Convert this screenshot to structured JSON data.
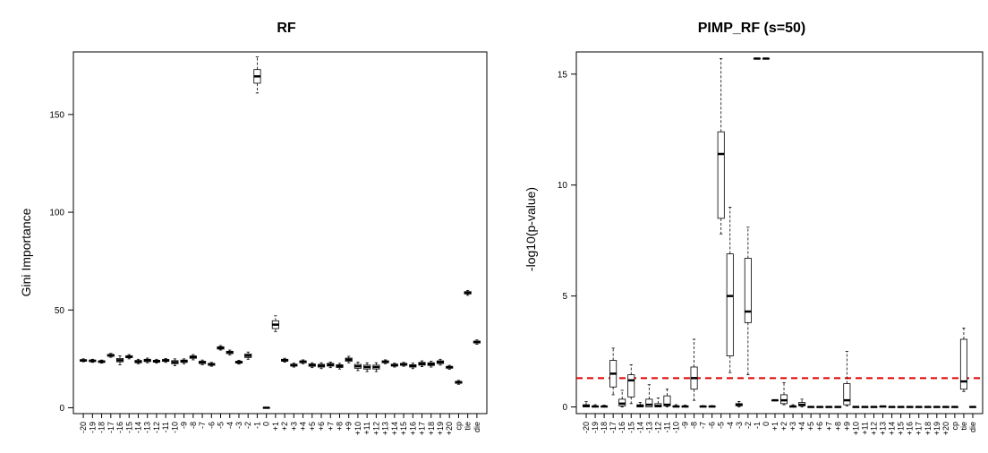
{
  "chart_data": [
    {
      "type": "boxplot",
      "title": "RF",
      "xlabel": "",
      "ylabel": "Gini Importance",
      "ylim": [
        -3,
        182
      ],
      "yticks": [
        0,
        50,
        100,
        150
      ],
      "categories": [
        "-20",
        "-19",
        "-18",
        "-17",
        "-16",
        "-15",
        "-14",
        "-13",
        "-12",
        "-11",
        "-10",
        "-9",
        "-8",
        "-7",
        "-6",
        "-5",
        "-4",
        "-3",
        "-2",
        "-1",
        "0",
        "+1",
        "+2",
        "+3",
        "+4",
        "+5",
        "+6",
        "+7",
        "+8",
        "+9",
        "+10",
        "+11",
        "+12",
        "+13",
        "+14",
        "+15",
        "+16",
        "+17",
        "+18",
        "+19",
        "+20",
        "cp",
        "tie",
        "die"
      ],
      "boxes": [
        {
          "min": 23.5,
          "q1": 23.8,
          "median": 24.2,
          "q3": 24.6,
          "max": 25.0
        },
        {
          "min": 23.2,
          "q1": 23.6,
          "median": 24.0,
          "q3": 24.4,
          "max": 24.8
        },
        {
          "min": 22.8,
          "q1": 23.2,
          "median": 23.6,
          "q3": 24.0,
          "max": 24.4
        },
        {
          "min": 25.8,
          "q1": 26.3,
          "median": 26.8,
          "q3": 27.3,
          "max": 27.8
        },
        {
          "min": 22.0,
          "q1": 23.5,
          "median": 24.3,
          "q3": 25.2,
          "max": 26.5
        },
        {
          "min": 25.0,
          "q1": 25.6,
          "median": 26.1,
          "q3": 26.6,
          "max": 27.2
        },
        {
          "min": 22.5,
          "q1": 23.0,
          "median": 23.6,
          "q3": 24.2,
          "max": 24.8
        },
        {
          "min": 23.0,
          "q1": 23.6,
          "median": 24.2,
          "q3": 24.8,
          "max": 25.4
        },
        {
          "min": 22.8,
          "q1": 23.3,
          "median": 23.8,
          "q3": 24.3,
          "max": 24.8
        },
        {
          "min": 23.2,
          "q1": 23.7,
          "median": 24.2,
          "q3": 24.7,
          "max": 25.2
        },
        {
          "min": 21.5,
          "q1": 22.5,
          "median": 23.3,
          "q3": 24.1,
          "max": 25.0
        },
        {
          "min": 22.5,
          "q1": 23.2,
          "median": 23.8,
          "q3": 24.4,
          "max": 25.0
        },
        {
          "min": 24.5,
          "q1": 25.3,
          "median": 25.9,
          "q3": 26.5,
          "max": 27.2
        },
        {
          "min": 22.0,
          "q1": 22.6,
          "median": 23.2,
          "q3": 23.8,
          "max": 24.4
        },
        {
          "min": 21.2,
          "q1": 21.7,
          "median": 22.2,
          "q3": 22.7,
          "max": 23.2
        },
        {
          "min": 29.5,
          "q1": 30.0,
          "median": 30.6,
          "q3": 31.2,
          "max": 31.8
        },
        {
          "min": 27.0,
          "q1": 27.7,
          "median": 28.3,
          "q3": 28.9,
          "max": 29.5
        },
        {
          "min": 22.3,
          "q1": 22.8,
          "median": 23.3,
          "q3": 23.8,
          "max": 24.3
        },
        {
          "min": 24.8,
          "q1": 25.7,
          "median": 26.6,
          "q3": 27.5,
          "max": 28.5
        },
        {
          "min": 161.0,
          "q1": 166.0,
          "median": 169.5,
          "q3": 173.0,
          "max": 179.5
        },
        {
          "min": 0.0,
          "q1": 0.0,
          "median": 0.0,
          "q3": 0.0,
          "max": 0.0
        },
        {
          "min": 39.0,
          "q1": 40.5,
          "median": 42.5,
          "q3": 44.5,
          "max": 47.0
        },
        {
          "min": 23.3,
          "q1": 23.8,
          "median": 24.3,
          "q3": 24.8,
          "max": 25.3
        },
        {
          "min": 20.8,
          "q1": 21.3,
          "median": 21.8,
          "q3": 22.3,
          "max": 22.8
        },
        {
          "min": 22.5,
          "q1": 23.0,
          "median": 23.5,
          "q3": 24.0,
          "max": 24.5
        },
        {
          "min": 20.5,
          "q1": 21.2,
          "median": 21.8,
          "q3": 22.4,
          "max": 23.0
        },
        {
          "min": 20.0,
          "q1": 20.8,
          "median": 21.5,
          "q3": 22.2,
          "max": 23.0
        },
        {
          "min": 20.5,
          "q1": 21.3,
          "median": 22.0,
          "q3": 22.7,
          "max": 23.4
        },
        {
          "min": 19.8,
          "q1": 20.6,
          "median": 21.3,
          "q3": 22.0,
          "max": 22.7
        },
        {
          "min": 23.0,
          "q1": 23.8,
          "median": 24.6,
          "q3": 25.4,
          "max": 26.3
        },
        {
          "min": 19.0,
          "q1": 20.2,
          "median": 21.2,
          "q3": 22.2,
          "max": 23.3
        },
        {
          "min": 18.5,
          "q1": 19.8,
          "median": 20.8,
          "q3": 21.8,
          "max": 23.0
        },
        {
          "min": 18.5,
          "q1": 19.8,
          "median": 20.8,
          "q3": 21.8,
          "max": 23.0
        },
        {
          "min": 22.5,
          "q1": 23.0,
          "median": 23.5,
          "q3": 24.0,
          "max": 24.5
        },
        {
          "min": 20.8,
          "q1": 21.3,
          "median": 21.8,
          "q3": 22.3,
          "max": 22.8
        },
        {
          "min": 21.2,
          "q1": 21.7,
          "median": 22.2,
          "q3": 22.7,
          "max": 23.2
        },
        {
          "min": 20.0,
          "q1": 20.8,
          "median": 21.4,
          "q3": 22.0,
          "max": 22.8
        },
        {
          "min": 21.0,
          "q1": 21.8,
          "median": 22.5,
          "q3": 23.2,
          "max": 24.0
        },
        {
          "min": 20.8,
          "q1": 21.6,
          "median": 22.3,
          "q3": 23.0,
          "max": 23.8
        },
        {
          "min": 21.8,
          "q1": 22.6,
          "median": 23.3,
          "q3": 24.0,
          "max": 24.8
        },
        {
          "min": 19.7,
          "q1": 20.2,
          "median": 20.7,
          "q3": 21.2,
          "max": 21.7
        },
        {
          "min": 12.0,
          "q1": 12.5,
          "median": 13.0,
          "q3": 13.5,
          "max": 14.0
        },
        {
          "min": 57.5,
          "q1": 58.2,
          "median": 58.8,
          "q3": 59.4,
          "max": 60.0
        },
        {
          "min": 32.5,
          "q1": 33.1,
          "median": 33.6,
          "q3": 34.1,
          "max": 34.7
        }
      ]
    },
    {
      "type": "boxplot",
      "title": "PIMP_RF (s=50)",
      "xlabel": "",
      "ylabel": "-log10(p-value)",
      "ylim": [
        -0.3,
        16.0
      ],
      "yticks": [
        0,
        5,
        10,
        15
      ],
      "threshold": {
        "value": 1.3,
        "color": "#e00000",
        "style": "dashed"
      },
      "categories": [
        "-20",
        "-19",
        "-18",
        "-17",
        "-16",
        "-15",
        "-14",
        "-13",
        "-12",
        "-11",
        "-10",
        "-9",
        "-8",
        "-7",
        "-6",
        "-5",
        "-4",
        "-3",
        "-2",
        "-1",
        "0",
        "+1",
        "+2",
        "+3",
        "+4",
        "+5",
        "+6",
        "+7",
        "+8",
        "+9",
        "+10",
        "+11",
        "+12",
        "+13",
        "+14",
        "+15",
        "+16",
        "+17",
        "+18",
        "+19",
        "+20",
        "cp",
        "tie",
        "die"
      ],
      "boxes": [
        {
          "min": 0.0,
          "q1": 0.0,
          "median": 0.05,
          "q3": 0.1,
          "max": 0.25
        },
        {
          "min": 0.0,
          "q1": 0.0,
          "median": 0.02,
          "q3": 0.05,
          "max": 0.1
        },
        {
          "min": 0.0,
          "q1": 0.0,
          "median": 0.02,
          "q3": 0.04,
          "max": 0.08
        },
        {
          "min": 0.55,
          "q1": 0.9,
          "median": 1.5,
          "q3": 2.1,
          "max": 2.65
        },
        {
          "min": 0.0,
          "q1": 0.05,
          "median": 0.15,
          "q3": 0.35,
          "max": 0.75
        },
        {
          "min": 0.15,
          "q1": 0.45,
          "median": 1.2,
          "q3": 1.45,
          "max": 1.9
        },
        {
          "min": 0.0,
          "q1": 0.0,
          "median": 0.05,
          "q3": 0.1,
          "max": 0.2
        },
        {
          "min": 0.0,
          "q1": 0.0,
          "median": 0.1,
          "q3": 0.35,
          "max": 1.0
        },
        {
          "min": 0.0,
          "q1": 0.0,
          "median": 0.05,
          "q3": 0.15,
          "max": 0.4
        },
        {
          "min": 0.0,
          "q1": 0.05,
          "median": 0.1,
          "q3": 0.5,
          "max": 0.8
        },
        {
          "min": 0.0,
          "q1": 0.0,
          "median": 0.02,
          "q3": 0.05,
          "max": 0.1
        },
        {
          "min": 0.0,
          "q1": 0.0,
          "median": 0.02,
          "q3": 0.04,
          "max": 0.08
        },
        {
          "min": 0.3,
          "q1": 0.8,
          "median": 1.3,
          "q3": 1.8,
          "max": 3.05
        },
        {
          "min": 0.0,
          "q1": 0.0,
          "median": 0.02,
          "q3": 0.04,
          "max": 0.06
        },
        {
          "min": 0.0,
          "q1": 0.0,
          "median": 0.02,
          "q3": 0.04,
          "max": 0.06
        },
        {
          "min": 7.8,
          "q1": 8.5,
          "median": 11.4,
          "q3": 12.4,
          "max": 15.7
        },
        {
          "min": 1.55,
          "q1": 2.3,
          "median": 5.0,
          "q3": 6.9,
          "max": 9.0
        },
        {
          "min": 0.0,
          "q1": 0.05,
          "median": 0.1,
          "q3": 0.15,
          "max": 0.25
        },
        {
          "min": 1.45,
          "q1": 3.8,
          "median": 4.3,
          "q3": 6.7,
          "max": 8.1
        },
        {
          "min": 15.7,
          "q1": 15.7,
          "median": 15.7,
          "q3": 15.7,
          "max": 15.7
        },
        {
          "min": 15.7,
          "q1": 15.7,
          "median": 15.7,
          "q3": 15.7,
          "max": 15.7
        },
        {
          "min": 0.3,
          "q1": 0.3,
          "median": 0.3,
          "q3": 0.3,
          "max": 0.3
        },
        {
          "min": 0.1,
          "q1": 0.15,
          "median": 0.3,
          "q3": 0.55,
          "max": 1.1
        },
        {
          "min": 0.0,
          "q1": 0.0,
          "median": 0.02,
          "q3": 0.05,
          "max": 0.1
        },
        {
          "min": 0.0,
          "q1": 0.05,
          "median": 0.1,
          "q3": 0.2,
          "max": 0.35
        },
        {
          "min": 0.0,
          "q1": 0.0,
          "median": 0.0,
          "q3": 0.0,
          "max": 0.0
        },
        {
          "min": 0.0,
          "q1": 0.0,
          "median": 0.0,
          "q3": 0.0,
          "max": 0.0
        },
        {
          "min": 0.0,
          "q1": 0.0,
          "median": 0.0,
          "q3": 0.0,
          "max": 0.0
        },
        {
          "min": 0.0,
          "q1": 0.0,
          "median": 0.0,
          "q3": 0.0,
          "max": 0.0
        },
        {
          "min": 0.05,
          "q1": 0.1,
          "median": 0.3,
          "q3": 1.05,
          "max": 2.5
        },
        {
          "min": 0.0,
          "q1": 0.0,
          "median": 0.0,
          "q3": 0.0,
          "max": 0.0
        },
        {
          "min": 0.0,
          "q1": 0.0,
          "median": 0.0,
          "q3": 0.0,
          "max": 0.0
        },
        {
          "min": 0.0,
          "q1": 0.0,
          "median": 0.0,
          "q3": 0.0,
          "max": 0.0
        },
        {
          "min": 0.0,
          "q1": 0.0,
          "median": 0.02,
          "q3": 0.03,
          "max": 0.05
        },
        {
          "min": 0.0,
          "q1": 0.0,
          "median": 0.0,
          "q3": 0.0,
          "max": 0.0
        },
        {
          "min": 0.0,
          "q1": 0.0,
          "median": 0.0,
          "q3": 0.0,
          "max": 0.0
        },
        {
          "min": 0.0,
          "q1": 0.0,
          "median": 0.0,
          "q3": 0.0,
          "max": 0.0
        },
        {
          "min": 0.0,
          "q1": 0.0,
          "median": 0.0,
          "q3": 0.0,
          "max": 0.0
        },
        {
          "min": 0.0,
          "q1": 0.0,
          "median": 0.0,
          "q3": 0.0,
          "max": 0.0
        },
        {
          "min": 0.0,
          "q1": 0.0,
          "median": 0.0,
          "q3": 0.0,
          "max": 0.0
        },
        {
          "min": 0.0,
          "q1": 0.0,
          "median": 0.0,
          "q3": 0.0,
          "max": 0.0
        },
        {
          "min": 0.0,
          "q1": 0.0,
          "median": 0.0,
          "q3": 0.0,
          "max": 0.0
        },
        {
          "min": 0.7,
          "q1": 0.8,
          "median": 1.15,
          "q3": 3.05,
          "max": 3.55
        },
        {
          "min": 0.0,
          "q1": 0.0,
          "median": 0.0,
          "q3": 0.0,
          "max": 0.0
        }
      ]
    }
  ]
}
